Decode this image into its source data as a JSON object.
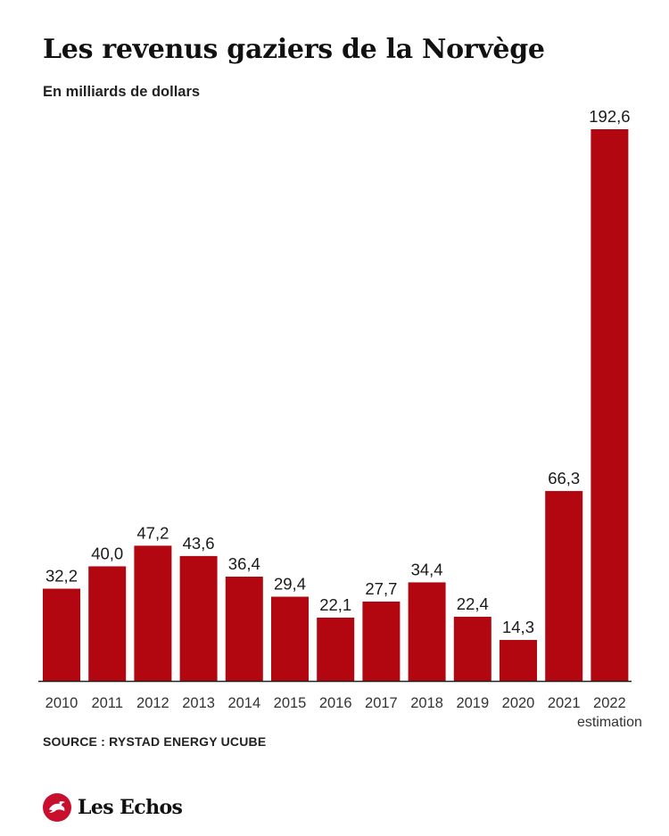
{
  "header": {
    "title": "Les revenus gaziers de la Norvège",
    "subtitle": "En milliards de dollars"
  },
  "chart_data": {
    "type": "bar",
    "title": "Les revenus gaziers de la Norvège",
    "subtitle": "En milliards de dollars",
    "categories": [
      "2010",
      "2011",
      "2012",
      "2013",
      "2014",
      "2015",
      "2016",
      "2017",
      "2018",
      "2019",
      "2020",
      "2021",
      "2022"
    ],
    "category_notes": [
      "",
      "",
      "",
      "",
      "",
      "",
      "",
      "",
      "",
      "",
      "",
      "",
      "estimation"
    ],
    "values": [
      32.2,
      40.0,
      47.2,
      43.6,
      36.4,
      29.4,
      22.1,
      27.7,
      34.4,
      22.4,
      14.3,
      66.3,
      192.6
    ],
    "value_labels": [
      "32,2",
      "40,0",
      "47,2",
      "43,6",
      "36,4",
      "29,4",
      "22,1",
      "27,7",
      "34,4",
      "22,4",
      "14,3",
      "66,3",
      "192,6"
    ],
    "ylim": [
      0,
      192.6
    ],
    "xlabel": "",
    "ylabel": "",
    "grid": false,
    "legend": "none",
    "bar_color": "#b20710"
  },
  "footer": {
    "source": "SOURCE : RYSTAD ENERGY UCUBE",
    "brand": "Les Echos",
    "brand_color": "#c8102e"
  }
}
